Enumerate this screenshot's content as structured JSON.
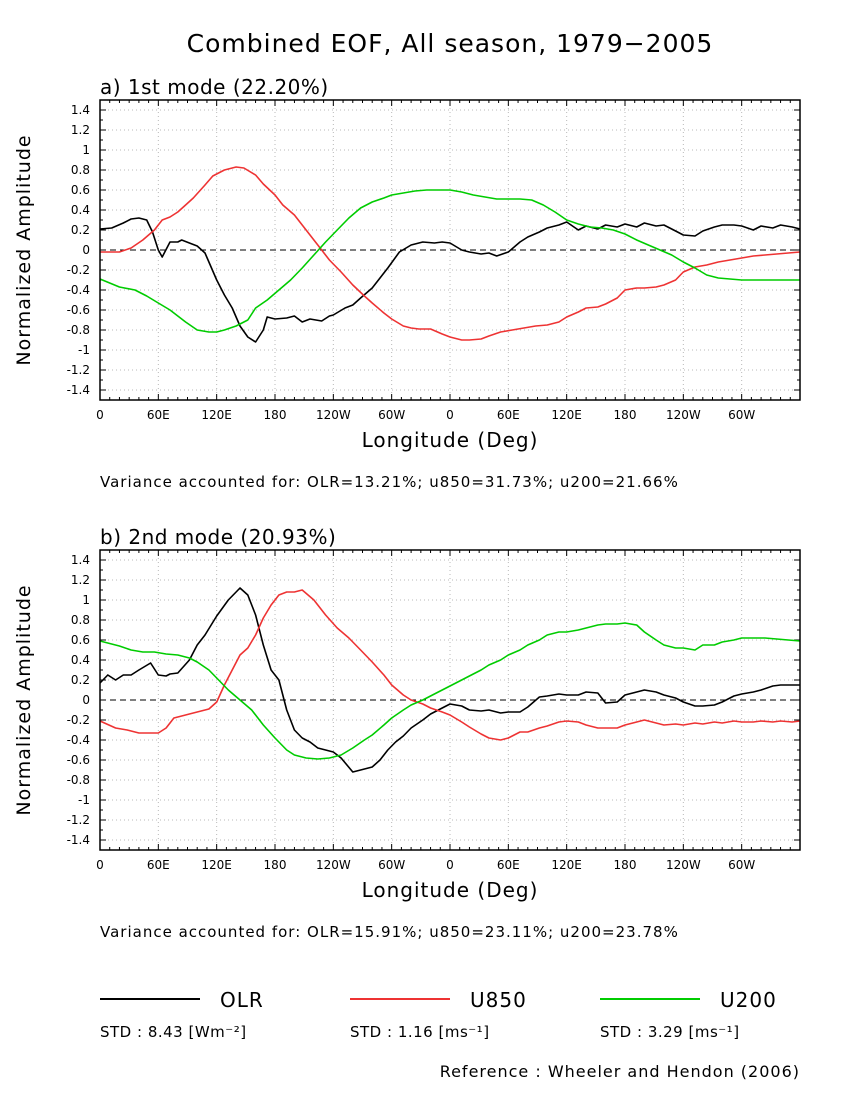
{
  "figure_title": "Combined EOF, All season, 1979−2005",
  "reference": "Reference : Wheeler and Hendon (2006)",
  "series_colors": {
    "OLR": "#000000",
    "U850": "#ee3333",
    "U200": "#00cc00"
  },
  "legend": [
    {
      "name": "OLR",
      "std": "STD : 8.43 [Wm⁻²]"
    },
    {
      "name": "U850",
      "std": "STD : 1.16 [ms⁻¹]"
    },
    {
      "name": "U200",
      "std": "STD : 3.29 [ms⁻¹]"
    }
  ],
  "chart_data": [
    {
      "type": "line",
      "title": "a) 1st mode (22.20%)",
      "xlabel": "Longitude (Deg)",
      "ylabel": "Normalized Amplitude",
      "xlim": [
        0,
        360
      ],
      "ylim": [
        -1.5,
        1.5
      ],
      "yticks": [
        -1.4,
        -1.2,
        -1,
        -0.8,
        -0.6,
        -0.4,
        -0.2,
        0,
        0.2,
        0.4,
        0.6,
        0.8,
        1,
        1.2,
        1.4
      ],
      "ytick_labels": [
        "-1.4",
        "-1.2",
        "-1",
        "-0.8",
        "-0.6",
        "-0.4",
        "-0.2",
        "0",
        "0.2",
        "0.4",
        "0.6",
        "0.8",
        "1",
        "1.2",
        "1.4"
      ],
      "xticks": [
        0,
        30,
        60,
        90,
        120,
        150,
        180,
        210,
        240,
        270,
        300,
        330
      ],
      "xtick_labels": [
        "0",
        "60E",
        "120E",
        "180",
        "120W",
        "60W",
        "0",
        "60E",
        "120E",
        "180",
        "120W",
        "60W"
      ],
      "variance": "Variance accounted for: OLR=13.21%; u850=31.73%; u200=21.66%",
      "series": [
        {
          "name": "OLR",
          "x": [
            0,
            6,
            12,
            16,
            20,
            24,
            27,
            30,
            32,
            36,
            40,
            42,
            46,
            50,
            54,
            56,
            60,
            64,
            68,
            72,
            76,
            80,
            84,
            86,
            90,
            96,
            100,
            104,
            108,
            114,
            118,
            120,
            126,
            130,
            134,
            140,
            144,
            148,
            154,
            160,
            166,
            172,
            176,
            180,
            186,
            190,
            196,
            200,
            204,
            210,
            216,
            220,
            226,
            230,
            236,
            240,
            246,
            250,
            256,
            260,
            266,
            270,
            276,
            280,
            286,
            290,
            296,
            300,
            306,
            310,
            316,
            320,
            326,
            330,
            336,
            340,
            346,
            350,
            356,
            360
          ],
          "values": [
            0.21,
            0.22,
            0.27,
            0.31,
            0.32,
            0.3,
            0.18,
            0.0,
            -0.07,
            0.08,
            0.08,
            0.1,
            0.07,
            0.04,
            -0.03,
            -0.12,
            -0.3,
            -0.45,
            -0.58,
            -0.76,
            -0.87,
            -0.92,
            -0.8,
            -0.67,
            -0.69,
            -0.68,
            -0.66,
            -0.72,
            -0.69,
            -0.71,
            -0.66,
            -0.65,
            -0.58,
            -0.55,
            -0.48,
            -0.38,
            -0.28,
            -0.18,
            -0.02,
            0.05,
            0.08,
            0.07,
            0.08,
            0.07,
            0.0,
            -0.02,
            -0.04,
            -0.03,
            -0.06,
            -0.02,
            0.08,
            0.13,
            0.18,
            0.22,
            0.25,
            0.28,
            0.2,
            0.24,
            0.21,
            0.25,
            0.23,
            0.26,
            0.23,
            0.27,
            0.24,
            0.25,
            0.19,
            0.15,
            0.14,
            0.19,
            0.23,
            0.25,
            0.25,
            0.24,
            0.2,
            0.24,
            0.22,
            0.25,
            0.23,
            0.21
          ]
        },
        {
          "name": "U850",
          "x": [
            0,
            10,
            16,
            22,
            28,
            32,
            36,
            40,
            44,
            48,
            54,
            58,
            64,
            70,
            74,
            80,
            84,
            90,
            94,
            100,
            106,
            112,
            118,
            124,
            130,
            136,
            140,
            146,
            150,
            156,
            160,
            164,
            170,
            176,
            180,
            186,
            190,
            196,
            200,
            206,
            212,
            218,
            224,
            230,
            236,
            240,
            246,
            250,
            256,
            260,
            266,
            270,
            276,
            280,
            286,
            290,
            296,
            300,
            306,
            312,
            318,
            324,
            330,
            336,
            342,
            348,
            354,
            360
          ],
          "values": [
            -0.02,
            -0.02,
            0.02,
            0.1,
            0.2,
            0.3,
            0.33,
            0.38,
            0.45,
            0.52,
            0.65,
            0.74,
            0.8,
            0.83,
            0.82,
            0.75,
            0.66,
            0.55,
            0.45,
            0.35,
            0.2,
            0.05,
            -0.1,
            -0.22,
            -0.35,
            -0.46,
            -0.53,
            -0.63,
            -0.69,
            -0.76,
            -0.78,
            -0.79,
            -0.79,
            -0.84,
            -0.87,
            -0.9,
            -0.9,
            -0.89,
            -0.86,
            -0.82,
            -0.8,
            -0.78,
            -0.76,
            -0.75,
            -0.72,
            -0.67,
            -0.62,
            -0.58,
            -0.57,
            -0.54,
            -0.48,
            -0.4,
            -0.38,
            -0.38,
            -0.37,
            -0.35,
            -0.3,
            -0.22,
            -0.17,
            -0.15,
            -0.12,
            -0.1,
            -0.08,
            -0.06,
            -0.05,
            -0.04,
            -0.03,
            -0.02
          ]
        },
        {
          "name": "U200",
          "x": [
            0,
            10,
            18,
            24,
            30,
            36,
            44,
            50,
            56,
            60,
            64,
            70,
            76,
            80,
            86,
            92,
            98,
            104,
            110,
            116,
            122,
            128,
            134,
            140,
            146,
            150,
            156,
            162,
            168,
            174,
            180,
            186,
            192,
            198,
            204,
            210,
            216,
            222,
            228,
            234,
            240,
            246,
            252,
            258,
            264,
            270,
            276,
            282,
            288,
            294,
            300,
            306,
            312,
            318,
            324,
            330,
            336,
            342,
            348,
            354,
            360
          ],
          "values": [
            -0.29,
            -0.37,
            -0.4,
            -0.46,
            -0.53,
            -0.6,
            -0.72,
            -0.8,
            -0.82,
            -0.82,
            -0.8,
            -0.76,
            -0.7,
            -0.58,
            -0.5,
            -0.4,
            -0.3,
            -0.18,
            -0.05,
            0.08,
            0.2,
            0.32,
            0.42,
            0.48,
            0.52,
            0.55,
            0.57,
            0.59,
            0.6,
            0.6,
            0.6,
            0.58,
            0.55,
            0.53,
            0.51,
            0.51,
            0.51,
            0.5,
            0.45,
            0.38,
            0.3,
            0.26,
            0.23,
            0.22,
            0.2,
            0.16,
            0.1,
            0.05,
            0.0,
            -0.05,
            -0.12,
            -0.18,
            -0.25,
            -0.28,
            -0.29,
            -0.3,
            -0.3,
            -0.3,
            -0.3,
            -0.3,
            -0.3
          ]
        }
      ]
    },
    {
      "type": "line",
      "title": "b) 2nd mode (20.93%)",
      "xlabel": "Longitude (Deg)",
      "ylabel": "Normalized Amplitude",
      "xlim": [
        0,
        360
      ],
      "ylim": [
        -1.5,
        1.5
      ],
      "yticks": [
        -1.4,
        -1.2,
        -1,
        -0.8,
        -0.6,
        -0.4,
        -0.2,
        0,
        0.2,
        0.4,
        0.6,
        0.8,
        1,
        1.2,
        1.4
      ],
      "ytick_labels": [
        "-1.4",
        "-1.2",
        "-1",
        "-0.8",
        "-0.6",
        "-0.4",
        "-0.2",
        "0",
        "0.2",
        "0.4",
        "0.6",
        "0.8",
        "1",
        "1.2",
        "1.4"
      ],
      "xticks": [
        0,
        30,
        60,
        90,
        120,
        150,
        180,
        210,
        240,
        270,
        300,
        330
      ],
      "xtick_labels": [
        "0",
        "60E",
        "120E",
        "180",
        "120W",
        "60W",
        "0",
        "60E",
        "120E",
        "180",
        "120W",
        "60W"
      ],
      "variance": "Variance accounted for: OLR=15.91%; u850=23.11%; u200=23.78%",
      "series": [
        {
          "name": "OLR",
          "x": [
            0,
            4,
            8,
            12,
            16,
            20,
            26,
            30,
            34,
            36,
            40,
            46,
            50,
            54,
            60,
            66,
            72,
            76,
            80,
            84,
            88,
            92,
            96,
            100,
            104,
            108,
            112,
            116,
            120,
            124,
            130,
            134,
            140,
            144,
            148,
            152,
            156,
            160,
            166,
            170,
            176,
            180,
            186,
            190,
            196,
            200,
            206,
            210,
            216,
            220,
            226,
            230,
            236,
            240,
            246,
            250,
            256,
            260,
            266,
            270,
            276,
            280,
            286,
            290,
            296,
            300,
            306,
            310,
            316,
            320,
            326,
            330,
            336,
            340,
            346,
            350,
            356,
            360
          ],
          "values": [
            0.17,
            0.25,
            0.2,
            0.25,
            0.25,
            0.3,
            0.37,
            0.25,
            0.24,
            0.26,
            0.27,
            0.4,
            0.55,
            0.65,
            0.84,
            1.0,
            1.12,
            1.05,
            0.85,
            0.55,
            0.3,
            0.2,
            -0.1,
            -0.3,
            -0.38,
            -0.42,
            -0.48,
            -0.5,
            -0.52,
            -0.58,
            -0.72,
            -0.7,
            -0.67,
            -0.6,
            -0.5,
            -0.42,
            -0.36,
            -0.28,
            -0.2,
            -0.14,
            -0.08,
            -0.04,
            -0.06,
            -0.1,
            -0.11,
            -0.1,
            -0.13,
            -0.12,
            -0.12,
            -0.07,
            0.03,
            0.04,
            0.06,
            0.05,
            0.05,
            0.08,
            0.07,
            -0.03,
            -0.02,
            0.05,
            0.08,
            0.1,
            0.08,
            0.05,
            0.02,
            -0.02,
            -0.06,
            -0.06,
            -0.05,
            -0.02,
            0.04,
            0.06,
            0.08,
            0.1,
            0.14,
            0.15,
            0.15,
            0.15
          ]
        },
        {
          "name": "U850",
          "x": [
            0,
            8,
            14,
            20,
            26,
            30,
            34,
            38,
            42,
            46,
            50,
            56,
            60,
            64,
            68,
            72,
            76,
            80,
            84,
            88,
            92,
            96,
            100,
            104,
            110,
            116,
            122,
            128,
            134,
            140,
            146,
            150,
            156,
            160,
            166,
            170,
            176,
            180,
            186,
            190,
            196,
            200,
            206,
            210,
            216,
            220,
            226,
            230,
            236,
            240,
            246,
            250,
            256,
            260,
            266,
            270,
            276,
            280,
            286,
            290,
            296,
            300,
            306,
            310,
            316,
            320,
            326,
            330,
            336,
            340,
            346,
            350,
            356,
            360
          ],
          "values": [
            -0.21,
            -0.28,
            -0.3,
            -0.33,
            -0.33,
            -0.33,
            -0.28,
            -0.18,
            -0.16,
            -0.14,
            -0.12,
            -0.09,
            -0.02,
            0.15,
            0.3,
            0.45,
            0.52,
            0.65,
            0.82,
            0.95,
            1.05,
            1.08,
            1.08,
            1.1,
            1.0,
            0.85,
            0.72,
            0.62,
            0.5,
            0.38,
            0.25,
            0.15,
            0.05,
            0.0,
            -0.04,
            -0.08,
            -0.12,
            -0.15,
            -0.22,
            -0.27,
            -0.34,
            -0.38,
            -0.4,
            -0.38,
            -0.32,
            -0.32,
            -0.28,
            -0.26,
            -0.22,
            -0.21,
            -0.22,
            -0.25,
            -0.28,
            -0.28,
            -0.28,
            -0.25,
            -0.22,
            -0.2,
            -0.23,
            -0.25,
            -0.24,
            -0.25,
            -0.23,
            -0.24,
            -0.22,
            -0.23,
            -0.21,
            -0.22,
            -0.22,
            -0.21,
            -0.22,
            -0.21,
            -0.22,
            -0.21
          ]
        },
        {
          "name": "U200",
          "x": [
            0,
            10,
            16,
            22,
            28,
            34,
            40,
            46,
            50,
            56,
            60,
            66,
            72,
            78,
            84,
            90,
            96,
            100,
            106,
            112,
            118,
            124,
            130,
            136,
            140,
            146,
            150,
            156,
            160,
            166,
            172,
            178,
            184,
            190,
            196,
            200,
            206,
            210,
            216,
            220,
            226,
            230,
            236,
            240,
            246,
            250,
            256,
            260,
            266,
            270,
            276,
            280,
            286,
            290,
            296,
            300,
            306,
            310,
            316,
            320,
            326,
            330,
            336,
            342,
            348,
            354,
            360
          ],
          "values": [
            0.59,
            0.54,
            0.5,
            0.48,
            0.48,
            0.46,
            0.45,
            0.42,
            0.38,
            0.3,
            0.22,
            0.1,
            0.0,
            -0.1,
            -0.25,
            -0.38,
            -0.5,
            -0.55,
            -0.58,
            -0.59,
            -0.58,
            -0.55,
            -0.48,
            -0.4,
            -0.35,
            -0.25,
            -0.18,
            -0.1,
            -0.05,
            0.0,
            0.06,
            0.12,
            0.18,
            0.24,
            0.3,
            0.35,
            0.4,
            0.45,
            0.5,
            0.55,
            0.6,
            0.65,
            0.68,
            0.68,
            0.7,
            0.72,
            0.75,
            0.76,
            0.76,
            0.77,
            0.75,
            0.68,
            0.6,
            0.55,
            0.52,
            0.52,
            0.5,
            0.55,
            0.55,
            0.58,
            0.6,
            0.62,
            0.62,
            0.62,
            0.61,
            0.6,
            0.59
          ]
        }
      ]
    }
  ]
}
